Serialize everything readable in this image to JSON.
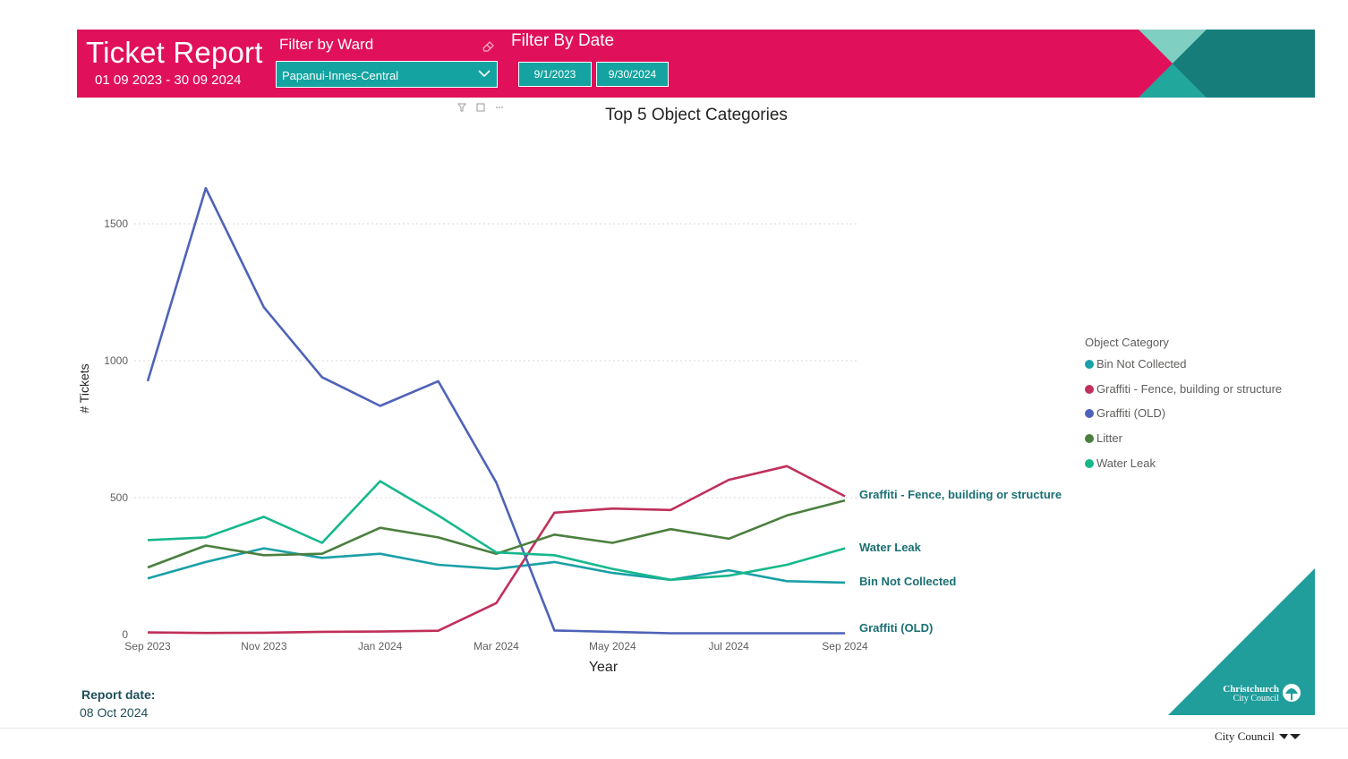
{
  "header": {
    "title": "Ticket Report",
    "subtitle": "01 09 2023 - 30 09 2024",
    "ward_filter_label": "Filter by Ward",
    "ward_value": "Papanui-Innes-Central",
    "date_filter_label": "Filter By Date",
    "date_start": "9/1/2023",
    "date_end": "9/30/2024",
    "colors": {
      "banner": "#e0115a",
      "teal": "#14a3a0"
    }
  },
  "footer": {
    "report_label": "Report date:",
    "report_date": "08 Oct 2024",
    "logo_line1": "Christchurch",
    "logo_line2": "City Council",
    "logo_bottom": "City Council"
  },
  "chart_data": {
    "type": "line",
    "title": "Top 5 Object Categories",
    "xlabel": "Year",
    "ylabel": "# Tickets",
    "x": [
      "2023-09",
      "2023-10",
      "2023-11",
      "2023-12",
      "2024-01",
      "2024-02",
      "2024-03",
      "2024-04",
      "2024-05",
      "2024-06",
      "2024-07",
      "2024-08",
      "2024-09"
    ],
    "x_tick_labels": [
      "Sep 2023",
      "Nov 2023",
      "Jan 2024",
      "Mar 2024",
      "May 2024",
      "Jul 2024",
      "Sep 2024"
    ],
    "yticks": [
      0,
      500,
      1000,
      1500
    ],
    "ylim": [
      0,
      1700
    ],
    "grid": true,
    "legend_title": "Object Category",
    "legend_position": "right",
    "series": [
      {
        "name": "Bin Not Collected",
        "color": "#1aa0a6",
        "values": [
          205,
          265,
          315,
          280,
          295,
          255,
          240,
          265,
          225,
          200,
          235,
          195,
          190
        ]
      },
      {
        "name": "Graffiti - Fence, building or structure",
        "color": "#c0305a",
        "values": [
          8,
          6,
          7,
          10,
          11,
          14,
          115,
          445,
          460,
          455,
          565,
          615,
          505
        ]
      },
      {
        "name": "Graffiti (OLD)",
        "color": "#4e63b8",
        "values": [
          925,
          1630,
          1195,
          940,
          835,
          925,
          555,
          15,
          10,
          5,
          5,
          5,
          5
        ]
      },
      {
        "name": "Litter",
        "color": "#4b7f3f",
        "values": [
          245,
          325,
          290,
          295,
          390,
          355,
          295,
          365,
          335,
          385,
          350,
          435,
          490
        ]
      },
      {
        "name": "Water Leak",
        "color": "#16b88c",
        "values": [
          345,
          355,
          430,
          335,
          560,
          435,
          300,
          290,
          240,
          200,
          215,
          255,
          315
        ]
      }
    ],
    "end_labels": [
      "Graffiti - Fence, building or structure",
      "Water Leak",
      "Bin Not Collected",
      "Graffiti (OLD)"
    ]
  }
}
